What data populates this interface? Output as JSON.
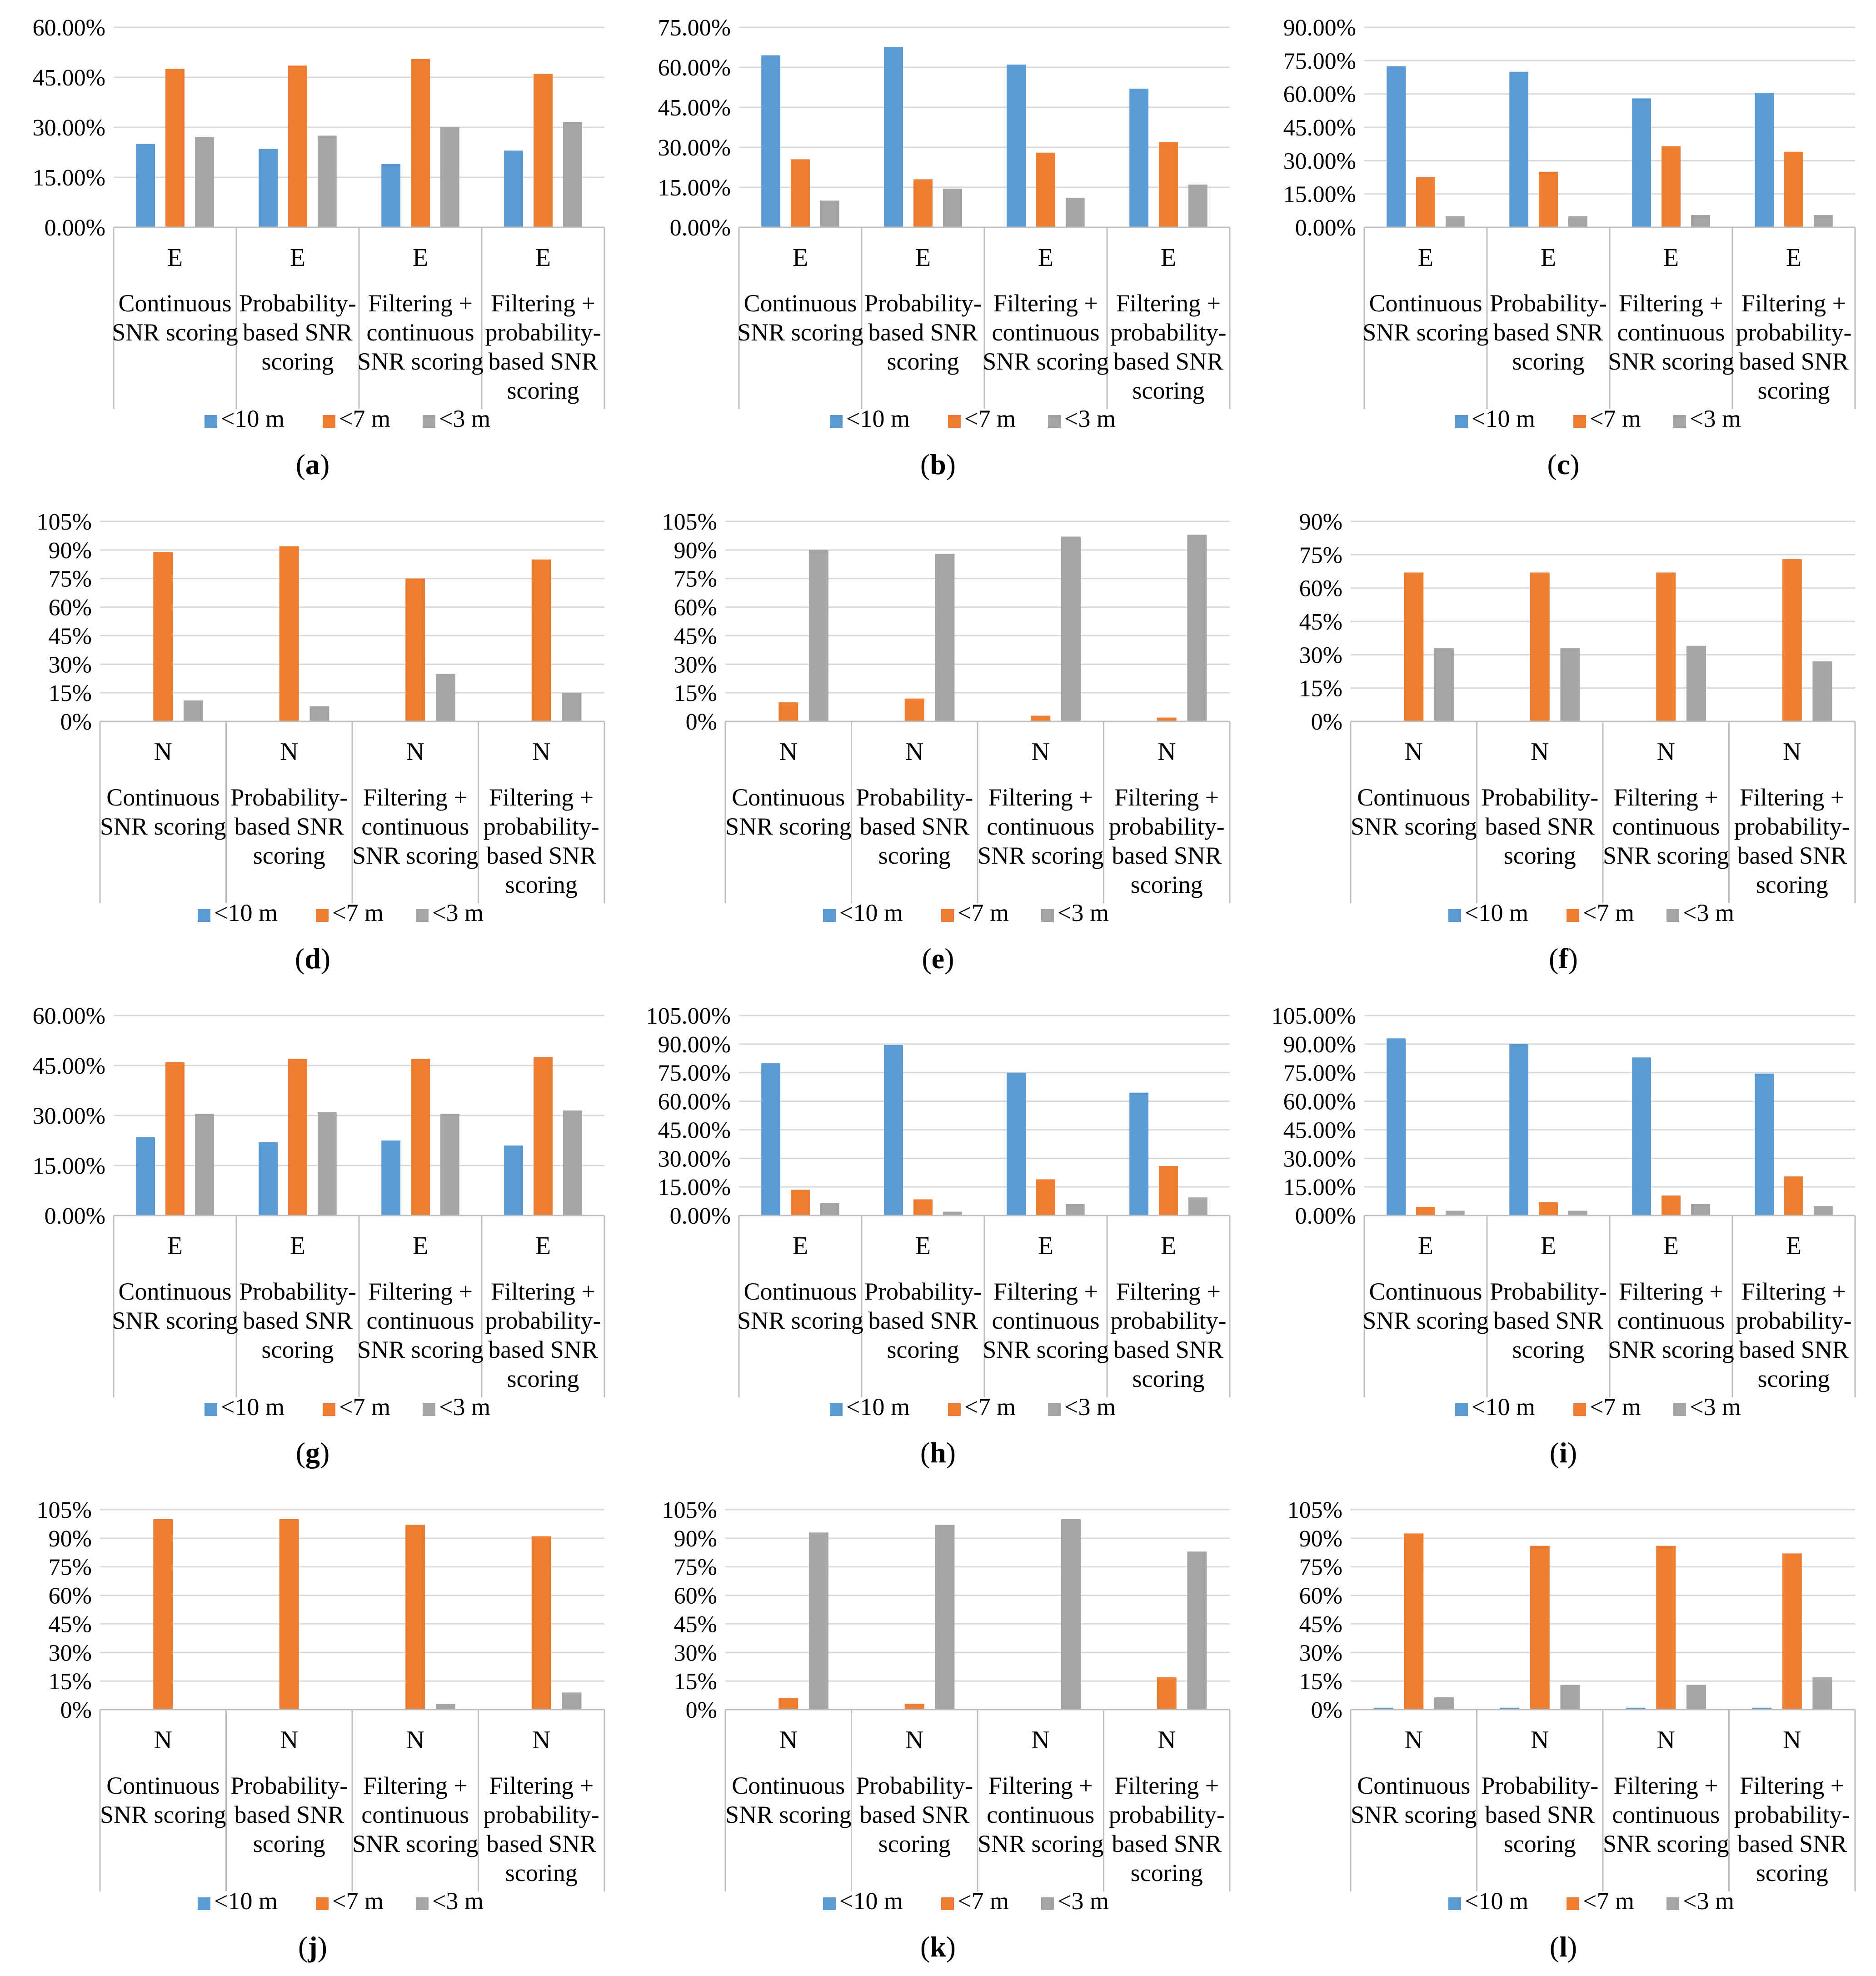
{
  "legend_labels": [
    "<10 m",
    "<7 m",
    "<3 m"
  ],
  "colors": {
    "lt10": "#5B9BD5",
    "lt7": "#ED7D31",
    "lt3": "#A5A5A5",
    "grid": "#D9D9D9",
    "axis": "#BFBFBF"
  },
  "chart_data": [
    {
      "panel": "a",
      "type": "bar",
      "group": "E",
      "categories": [
        "Continuous SNR scoring",
        "Probability-based SNR scoring",
        "Filtering + continuous SNR scoring",
        "Filtering + probability-based SNR scoring"
      ],
      "series": [
        {
          "name": "<10 m",
          "values": [
            25,
            23.5,
            19,
            23
          ]
        },
        {
          "name": "<7 m",
          "values": [
            47.5,
            48.5,
            50.5,
            46
          ]
        },
        {
          "name": "<3 m",
          "values": [
            27,
            27.5,
            30,
            31.5
          ]
        }
      ],
      "ylim": [
        0,
        60
      ],
      "yticks": [
        "0.00%",
        "15.00%",
        "30.00%",
        "45.00%",
        "60.00%"
      ]
    },
    {
      "panel": "b",
      "type": "bar",
      "group": "E",
      "categories": [
        "Continuous SNR scoring",
        "Probability-based SNR scoring",
        "Filtering + continuous SNR scoring",
        "Filtering + probability-based SNR scoring"
      ],
      "series": [
        {
          "name": "<10 m",
          "values": [
            64.5,
            67.5,
            61,
            52
          ]
        },
        {
          "name": "<7 m",
          "values": [
            25.5,
            18,
            28,
            32
          ]
        },
        {
          "name": "<3 m",
          "values": [
            10,
            14.5,
            11,
            16
          ]
        }
      ],
      "ylim": [
        0,
        75
      ],
      "yticks": [
        "0.00%",
        "15.00%",
        "30.00%",
        "45.00%",
        "60.00%",
        "75.00%"
      ]
    },
    {
      "panel": "c",
      "type": "bar",
      "group": "E",
      "categories": [
        "Continuous SNR scoring",
        "Probability-based SNR scoring",
        "Filtering + continuous SNR scoring",
        "Filtering + probability-based SNR scoring"
      ],
      "series": [
        {
          "name": "<10 m",
          "values": [
            72.5,
            70,
            58,
            60.5
          ]
        },
        {
          "name": "<7 m",
          "values": [
            22.5,
            25,
            36.5,
            34
          ]
        },
        {
          "name": "<3 m",
          "values": [
            5,
            5,
            5.5,
            5.5
          ]
        }
      ],
      "ylim": [
        0,
        90
      ],
      "yticks": [
        "0.00%",
        "15.00%",
        "30.00%",
        "45.00%",
        "60.00%",
        "75.00%",
        "90.00%"
      ]
    },
    {
      "panel": "d",
      "type": "bar",
      "group": "N",
      "categories": [
        "Continuous SNR scoring",
        "Probability-based SNR scoring",
        "Filtering + continuous SNR scoring",
        "Filtering + probability-based SNR scoring"
      ],
      "series": [
        {
          "name": "<10 m",
          "values": [
            0,
            0,
            0,
            0
          ]
        },
        {
          "name": "<7 m",
          "values": [
            89,
            92,
            75,
            85
          ]
        },
        {
          "name": "<3 m",
          "values": [
            11,
            8,
            25,
            15
          ]
        }
      ],
      "ylim": [
        0,
        105
      ],
      "yticks": [
        "0%",
        "15%",
        "30%",
        "45%",
        "60%",
        "75%",
        "90%",
        "105%"
      ]
    },
    {
      "panel": "e",
      "type": "bar",
      "group": "N",
      "categories": [
        "Continuous SNR scoring",
        "Probability-based SNR scoring",
        "Filtering + continuous SNR scoring",
        "Filtering + probability-based SNR scoring"
      ],
      "series": [
        {
          "name": "<10 m",
          "values": [
            0,
            0,
            0,
            0
          ]
        },
        {
          "name": "<7 m",
          "values": [
            10,
            12,
            3,
            2
          ]
        },
        {
          "name": "<3 m",
          "values": [
            90,
            88,
            97,
            98
          ]
        }
      ],
      "ylim": [
        0,
        105
      ],
      "yticks": [
        "0%",
        "15%",
        "30%",
        "45%",
        "60%",
        "75%",
        "90%",
        "105%"
      ]
    },
    {
      "panel": "f",
      "type": "bar",
      "group": "N",
      "categories": [
        "Continuous SNR scoring",
        "Probability-based SNR scoring",
        "Filtering + continuous SNR scoring",
        "Filtering + probability-based SNR scoring"
      ],
      "series": [
        {
          "name": "<10 m",
          "values": [
            0,
            0,
            0,
            0
          ]
        },
        {
          "name": "<7 m",
          "values": [
            67,
            67,
            67,
            73
          ]
        },
        {
          "name": "<3 m",
          "values": [
            33,
            33,
            34,
            27
          ]
        }
      ],
      "ylim": [
        0,
        90
      ],
      "yticks": [
        "0%",
        "15%",
        "30%",
        "45%",
        "60%",
        "75%",
        "90%"
      ]
    },
    {
      "panel": "g",
      "type": "bar",
      "group": "E",
      "categories": [
        "Continuous SNR scoring",
        "Probability-based SNR scoring",
        "Filtering + continuous SNR scoring",
        "Filtering + probability-based SNR scoring"
      ],
      "series": [
        {
          "name": "<10 m",
          "values": [
            23.5,
            22,
            22.5,
            21
          ]
        },
        {
          "name": "<7 m",
          "values": [
            46,
            47,
            47,
            47.5
          ]
        },
        {
          "name": "<3 m",
          "values": [
            30.5,
            31,
            30.5,
            31.5
          ]
        }
      ],
      "ylim": [
        0,
        60
      ],
      "yticks": [
        "0.00%",
        "15.00%",
        "30.00%",
        "45.00%",
        "60.00%"
      ]
    },
    {
      "panel": "h",
      "type": "bar",
      "group": "E",
      "categories": [
        "Continuous SNR scoring",
        "Probability-based SNR scoring",
        "Filtering + continuous SNR scoring",
        "Filtering + probability-based SNR scoring"
      ],
      "series": [
        {
          "name": "<10 m",
          "values": [
            80,
            89.5,
            75,
            64.5
          ]
        },
        {
          "name": "<7 m",
          "values": [
            13.5,
            8.5,
            19,
            26
          ]
        },
        {
          "name": "<3 m",
          "values": [
            6.5,
            2,
            6,
            9.5
          ]
        }
      ],
      "ylim": [
        0,
        105
      ],
      "yticks": [
        "0.00%",
        "15.00%",
        "30.00%",
        "45.00%",
        "60.00%",
        "75.00%",
        "90.00%",
        "105.00%"
      ]
    },
    {
      "panel": "i",
      "type": "bar",
      "group": "E",
      "categories": [
        "Continuous SNR scoring",
        "Probability-based SNR scoring",
        "Filtering + continuous SNR scoring",
        "Filtering + probability-based SNR scoring"
      ],
      "series": [
        {
          "name": "<10 m",
          "values": [
            93,
            90,
            83,
            74.5
          ]
        },
        {
          "name": "<7 m",
          "values": [
            4.5,
            7,
            10.5,
            20.5
          ]
        },
        {
          "name": "<3 m",
          "values": [
            2.5,
            2.5,
            6,
            5
          ]
        }
      ],
      "ylim": [
        0,
        105
      ],
      "yticks": [
        "0.00%",
        "15.00%",
        "30.00%",
        "45.00%",
        "60.00%",
        "75.00%",
        "90.00%",
        "105.00%"
      ]
    },
    {
      "panel": "j",
      "type": "bar",
      "group": "N",
      "categories": [
        "Continuous SNR scoring",
        "Probability-based SNR scoring",
        "Filtering + continuous SNR scoring",
        "Filtering + probability-based SNR scoring"
      ],
      "series": [
        {
          "name": "<10 m",
          "values": [
            0,
            0,
            0,
            0
          ]
        },
        {
          "name": "<7 m",
          "values": [
            100,
            100,
            97,
            91
          ]
        },
        {
          "name": "<3 m",
          "values": [
            0,
            0,
            3,
            9
          ]
        }
      ],
      "ylim": [
        0,
        105
      ],
      "yticks": [
        "0%",
        "15%",
        "30%",
        "45%",
        "60%",
        "75%",
        "90%",
        "105%"
      ]
    },
    {
      "panel": "k",
      "type": "bar",
      "group": "N",
      "categories": [
        "Continuous SNR scoring",
        "Probability-based SNR scoring",
        "Filtering + continuous SNR scoring",
        "Filtering + probability-based SNR scoring"
      ],
      "series": [
        {
          "name": "<10 m",
          "values": [
            0,
            0,
            0,
            0
          ]
        },
        {
          "name": "<7 m",
          "values": [
            6,
            3,
            0,
            17
          ]
        },
        {
          "name": "<3 m",
          "values": [
            93,
            97,
            100,
            83
          ]
        }
      ],
      "ylim": [
        0,
        105
      ],
      "yticks": [
        "0%",
        "15%",
        "30%",
        "45%",
        "60%",
        "75%",
        "90%",
        "105%"
      ]
    },
    {
      "panel": "l",
      "type": "bar",
      "group": "N",
      "categories": [
        "Continuous SNR scoring",
        "Probability-based SNR scoring",
        "Filtering + continuous SNR scoring",
        "Filtering + probability-based SNR scoring"
      ],
      "series": [
        {
          "name": "<10 m",
          "values": [
            1,
            1,
            1,
            1
          ]
        },
        {
          "name": "<7 m",
          "values": [
            92.5,
            86,
            86,
            82
          ]
        },
        {
          "name": "<3 m",
          "values": [
            6.5,
            13,
            13,
            17
          ]
        }
      ],
      "ylim": [
        0,
        105
      ],
      "yticks": [
        "0%",
        "15%",
        "30%",
        "45%",
        "60%",
        "75%",
        "90%",
        "105%"
      ]
    }
  ]
}
